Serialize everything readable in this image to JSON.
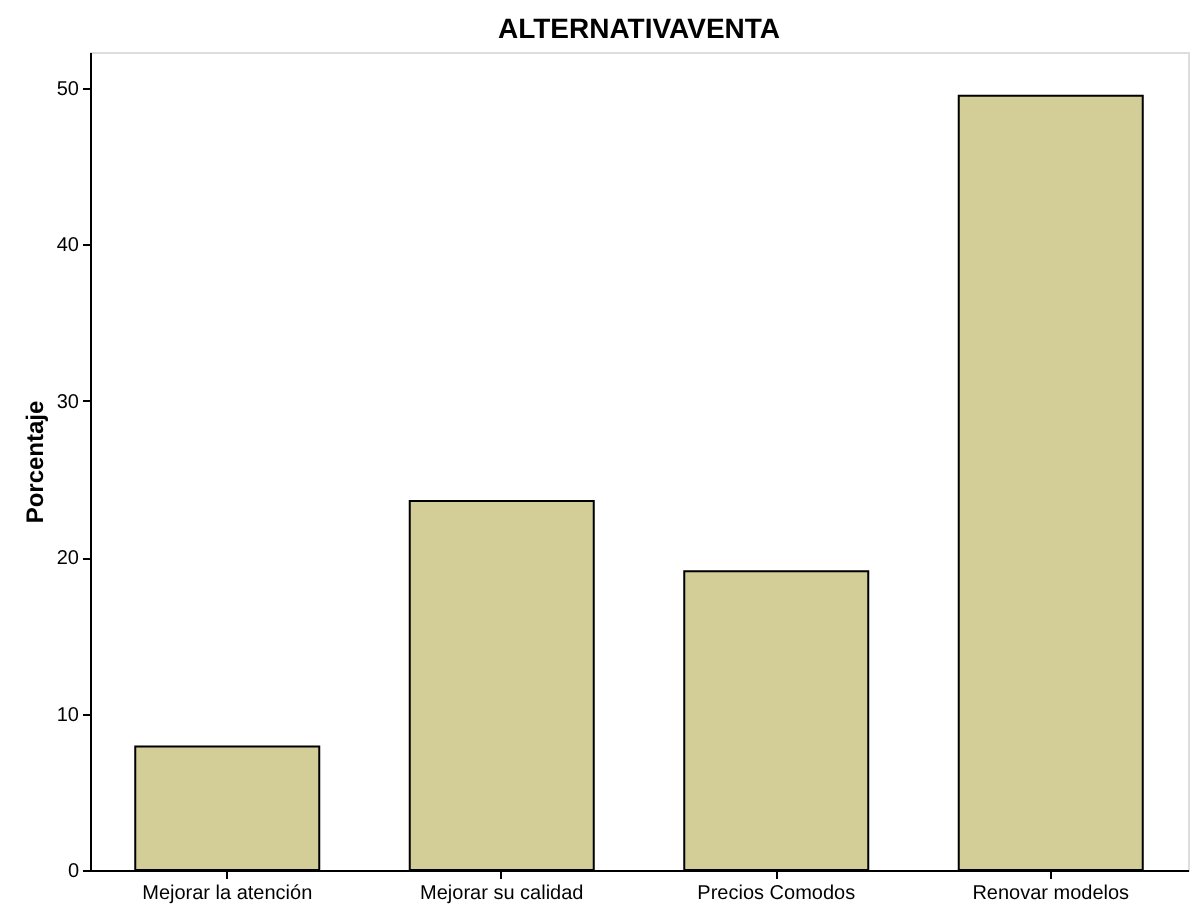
{
  "chart_data": {
    "type": "bar",
    "title": "ALTERNATIVAVENTA",
    "ylabel": "Porcentaje",
    "categories": [
      "Mejorar la atención",
      "Mejorar su calidad",
      "Precios Comodos",
      "Renovar modelos"
    ],
    "values": [
      7.9,
      23.6,
      19.1,
      49.5
    ],
    "color": "#d3ce98",
    "ylim": [
      0,
      52.3
    ],
    "yticks": [
      0,
      10,
      20,
      30,
      40,
      50
    ],
    "grid": false
  }
}
